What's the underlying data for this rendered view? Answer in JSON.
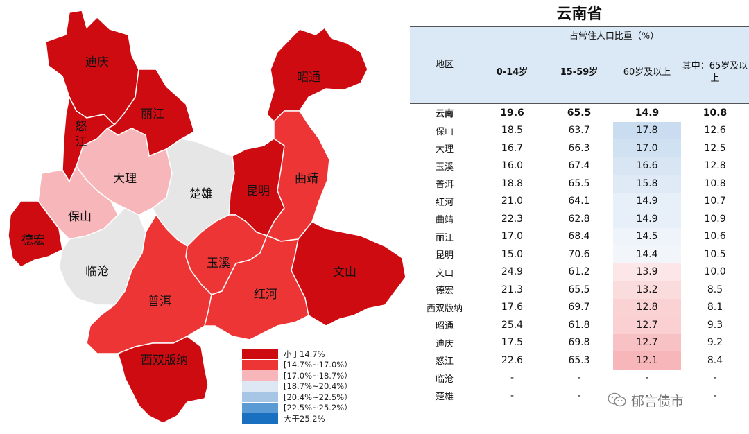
{
  "map": {
    "regions": [
      {
        "name": "迪庆",
        "color": "#cf0b12"
      },
      {
        "name": "丽江",
        "color": "#cf0b12"
      },
      {
        "name": "怒江",
        "color": "#cf0b12"
      },
      {
        "name": "昭通",
        "color": "#cf0b12"
      },
      {
        "name": "德宏",
        "color": "#cf0b12"
      },
      {
        "name": "昆明",
        "color": "#cf0b12"
      },
      {
        "name": "西双版纳",
        "color": "#cf0b12"
      },
      {
        "name": "文山",
        "color": "#cf0b12"
      },
      {
        "name": "大理",
        "color": "#f7b6b9"
      },
      {
        "name": "保山",
        "color": "#f7b6b9"
      },
      {
        "name": "楚雄",
        "color": "#e6e6e6"
      },
      {
        "name": "临沧",
        "color": "#e6e6e6"
      },
      {
        "name": "曲靖",
        "color": "#ee3536"
      },
      {
        "name": "玉溪",
        "color": "#ee3536"
      },
      {
        "name": "普洱",
        "color": "#ee3536"
      },
      {
        "name": "红河",
        "color": "#ee3536"
      }
    ],
    "legend": [
      {
        "label": "小于14.7%",
        "color": "#cf0b12"
      },
      {
        "label": "[14.7%~17.0%）",
        "color": "#ee3536"
      },
      {
        "label": "[17.0%~18.7%）",
        "color": "#f7b6b9"
      },
      {
        "label": "[18.7%~20.4%）",
        "color": "#dde8f4"
      },
      {
        "label": "[20.4%~22.5%）",
        "color": "#a7c6e6"
      },
      {
        "label": "[22.5%~25.2%）",
        "color": "#5b9bd5"
      },
      {
        "label": "大于25.2%",
        "color": "#1a70c0"
      }
    ]
  },
  "table": {
    "title": "云南省",
    "group_header": "占常住人口比重（%）",
    "columns": [
      "地区",
      "0-14岁",
      "15-59岁",
      "60岁及以上",
      "其中：65岁及以上"
    ],
    "rows": [
      {
        "name": "云南",
        "c1": "19.6",
        "c2": "65.5",
        "c3": "14.9",
        "c4": "10.8",
        "heat": ""
      },
      {
        "name": "保山",
        "c1": "18.5",
        "c2": "63.7",
        "c3": "17.8",
        "c4": "12.6",
        "heat": "#c9dcf0"
      },
      {
        "name": "大理",
        "c1": "16.7",
        "c2": "66.3",
        "c3": "17.0",
        "c4": "12.5",
        "heat": "#d0e1f2"
      },
      {
        "name": "玉溪",
        "c1": "16.0",
        "c2": "67.4",
        "c3": "16.6",
        "c4": "12.8",
        "heat": "#d8e6f4"
      },
      {
        "name": "普洱",
        "c1": "18.8",
        "c2": "65.5",
        "c3": "15.8",
        "c4": "10.8",
        "heat": "#dfeaf6"
      },
      {
        "name": "红河",
        "c1": "21.0",
        "c2": "64.1",
        "c3": "14.9",
        "c4": "10.7",
        "heat": "#e7f0f9"
      },
      {
        "name": "曲靖",
        "c1": "22.3",
        "c2": "62.8",
        "c3": "14.9",
        "c4": "10.9",
        "heat": "#e7f0f9"
      },
      {
        "name": "丽江",
        "c1": "17.0",
        "c2": "68.4",
        "c3": "14.5",
        "c4": "10.6",
        "heat": "#eef4fa"
      },
      {
        "name": "昆明",
        "c1": "15.0",
        "c2": "70.6",
        "c3": "14.4",
        "c4": "10.5",
        "heat": "#f2f6fb"
      },
      {
        "name": "文山",
        "c1": "24.9",
        "c2": "61.2",
        "c3": "13.9",
        "c4": "10.0",
        "heat": "#fde6e7"
      },
      {
        "name": "德宏",
        "c1": "21.3",
        "c2": "65.5",
        "c3": "13.2",
        "c4": "8.5",
        "heat": "#fbdcdd"
      },
      {
        "name": "西双版纳",
        "c1": "17.6",
        "c2": "69.7",
        "c3": "12.8",
        "c4": "8.1",
        "heat": "#fad2d4"
      },
      {
        "name": "昭通",
        "c1": "25.4",
        "c2": "61.8",
        "c3": "12.7",
        "c4": "9.3",
        "heat": "#fad0d2"
      },
      {
        "name": "迪庆",
        "c1": "17.5",
        "c2": "69.8",
        "c3": "12.7",
        "c4": "9.2",
        "heat": "#f8c2c4"
      },
      {
        "name": "怒江",
        "c1": "22.6",
        "c2": "65.3",
        "c3": "12.1",
        "c4": "8.4",
        "heat": "#f7b7ba"
      },
      {
        "name": "临沧",
        "c1": "-",
        "c2": "-",
        "c3": "-",
        "c4": "-",
        "heat": ""
      },
      {
        "name": "楚雄",
        "c1": "-",
        "c2": "-",
        "c3": "-",
        "c4": "-",
        "heat": ""
      }
    ]
  },
  "watermark": "郁言债市"
}
